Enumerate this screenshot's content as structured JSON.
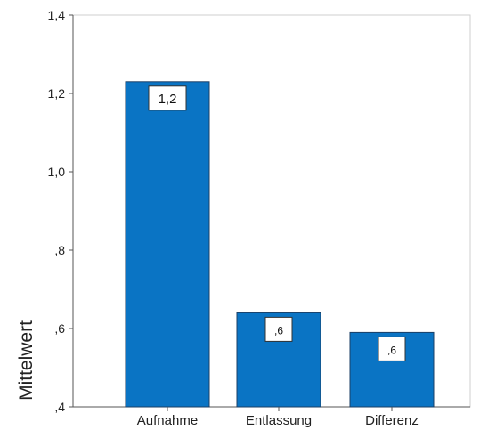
{
  "chart_data": {
    "type": "bar",
    "title": "",
    "xlabel": "",
    "ylabel": "Mittelwert",
    "categories": [
      "Aufnahme",
      "Entlassung",
      "Differenz"
    ],
    "values": [
      1.23,
      0.64,
      0.59
    ],
    "data_labels": [
      "1,2",
      ",6",
      ",6"
    ],
    "ylim": [
      0.4,
      1.4
    ],
    "y_ticks": [
      0.4,
      0.6,
      0.8,
      1.0,
      1.2,
      1.4
    ],
    "y_tick_labels": [
      ",4",
      ",6",
      ",8",
      "1,0",
      "1,2",
      "1,4"
    ],
    "bar_color": "#0a74c4",
    "grid": false,
    "legend": "none"
  }
}
